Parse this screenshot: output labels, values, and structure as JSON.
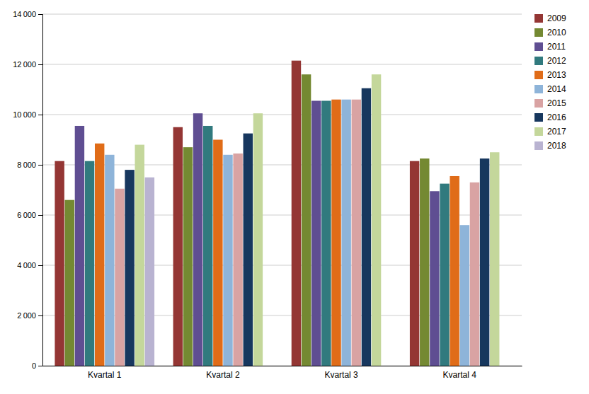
{
  "chart_data": {
    "type": "bar",
    "categories": [
      "Kvartal 1",
      "Kvartal 2",
      "Kvartal 3",
      "Kvartal 4"
    ],
    "series": [
      {
        "name": "2009",
        "color": "#943634",
        "values": [
          8150,
          9500,
          12150,
          8150
        ]
      },
      {
        "name": "2010",
        "color": "#748932",
        "values": [
          6600,
          8700,
          11600,
          8250
        ]
      },
      {
        "name": "2011",
        "color": "#5F4E92",
        "values": [
          9550,
          10050,
          10550,
          6950
        ]
      },
      {
        "name": "2012",
        "color": "#317A7E",
        "values": [
          8150,
          9550,
          10550,
          7250
        ]
      },
      {
        "name": "2013",
        "color": "#E06C18",
        "values": [
          8850,
          9000,
          10600,
          7550
        ]
      },
      {
        "name": "2014",
        "color": "#8EB4D9",
        "values": [
          8400,
          8400,
          10600,
          5600
        ]
      },
      {
        "name": "2015",
        "color": "#D9A3A3",
        "values": [
          7050,
          8450,
          10600,
          7300
        ]
      },
      {
        "name": "2016",
        "color": "#17375E",
        "values": [
          7800,
          9250,
          11050,
          8250
        ]
      },
      {
        "name": "2017",
        "color": "#C4D79B",
        "values": [
          8800,
          10050,
          11600,
          8500
        ]
      },
      {
        "name": "2018",
        "color": "#B9B3D1",
        "values": [
          7500,
          0,
          0,
          0
        ]
      }
    ],
    "ylim": [
      0,
      14000
    ],
    "yticks": [
      0,
      {
        "value": 2000,
        "label": "2 000"
      },
      {
        "value": 4000,
        "label": "4 000"
      },
      {
        "value": 6000,
        "label": "6 000"
      },
      {
        "value": 8000,
        "label": "8 000"
      },
      {
        "value": 10000,
        "label": "10 000"
      },
      {
        "value": 12000,
        "label": "12 000"
      },
      {
        "value": 14000,
        "label": "14 000"
      }
    ],
    "grid": true,
    "legend": "right"
  }
}
